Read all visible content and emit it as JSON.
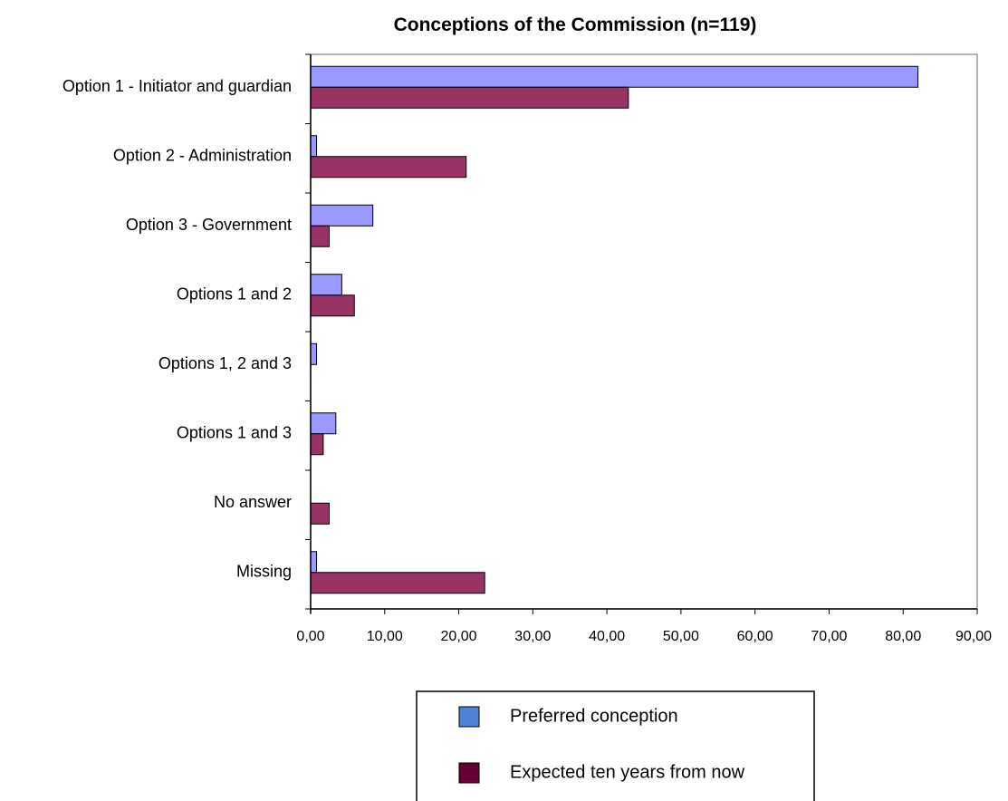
{
  "chart_data": {
    "type": "bar",
    "orientation": "horizontal",
    "title": "Conceptions of the Commission (n=119)",
    "xlabel": "",
    "ylabel": "",
    "categories": [
      "Option 1 - Initiator and guardian",
      "Option 2 - Administration",
      "Option 3 - Government",
      "Options 1 and 2",
      "Options 1, 2 and 3",
      "Options 1 and 3",
      "No answer",
      "Missing"
    ],
    "series": [
      {
        "name": "Preferred conception",
        "legend_color": "#4f81d9",
        "bar_color": "#9999ff",
        "values": [
          82.0,
          0.8,
          8.4,
          4.2,
          0.8,
          3.4,
          0.0,
          0.8
        ]
      },
      {
        "name": "Expected ten years from now",
        "legend_color": "#660033",
        "bar_color": "#993366",
        "values": [
          42.9,
          21.0,
          2.5,
          5.9,
          0.0,
          1.7,
          2.5,
          23.5
        ]
      }
    ],
    "xlim": [
      0,
      90
    ],
    "ticks": [
      0,
      10,
      20,
      30,
      40,
      50,
      60,
      70,
      80,
      90
    ],
    "tick_labels": [
      "0,00",
      "10,00",
      "20,00",
      "30,00",
      "40,00",
      "50,00",
      "60,00",
      "70,00",
      "80,00",
      "90,00"
    ],
    "grid": false,
    "legend_position": "bottom"
  }
}
